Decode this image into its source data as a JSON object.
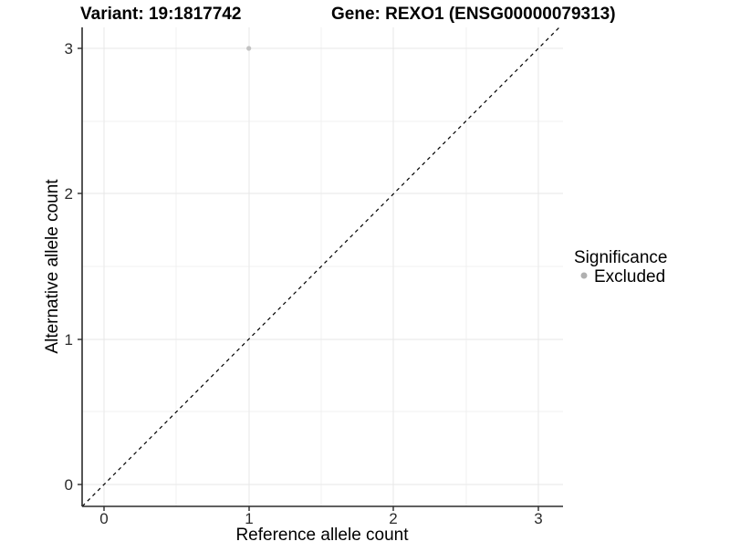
{
  "titles": {
    "left": "Variant: 19:1817742",
    "right": "Gene: REXO1 (ENSG00000079313)"
  },
  "axes": {
    "x": {
      "title": "Reference allele count",
      "ticks": [
        "0",
        "1",
        "2",
        "3"
      ]
    },
    "y": {
      "title": "Alternative allele count",
      "ticks": [
        "0",
        "1",
        "2",
        "3"
      ]
    }
  },
  "legend": {
    "title": "Significance",
    "items": [
      {
        "label": "Excluded",
        "color": "#b0b0b0"
      }
    ]
  },
  "colors": {
    "grid_major": "#e7e7e7",
    "grid_minor": "#f1f1f1",
    "axis_line": "#2b2b2b",
    "point": "#c2c2c2",
    "reference_line": "#000000"
  },
  "chart_data": {
    "type": "scatter",
    "title": "Variant: 19:1817742 — Gene: REXO1 (ENSG00000079313)",
    "xlabel": "Reference allele count",
    "ylabel": "Alternative allele count",
    "xlim": [
      -0.15,
      3.15
    ],
    "ylim": [
      -0.15,
      3.15
    ],
    "x_ticks": [
      0,
      1,
      2,
      3
    ],
    "y_ticks": [
      0,
      1,
      2,
      3
    ],
    "grid": "on",
    "legend_position": "right",
    "series": [
      {
        "name": "Excluded",
        "color": "#c2c2c2",
        "points": [
          {
            "x": 1,
            "y": 3
          }
        ]
      }
    ],
    "reference_line": {
      "type": "identity y=x",
      "style": "dashed",
      "color": "#000000"
    }
  }
}
